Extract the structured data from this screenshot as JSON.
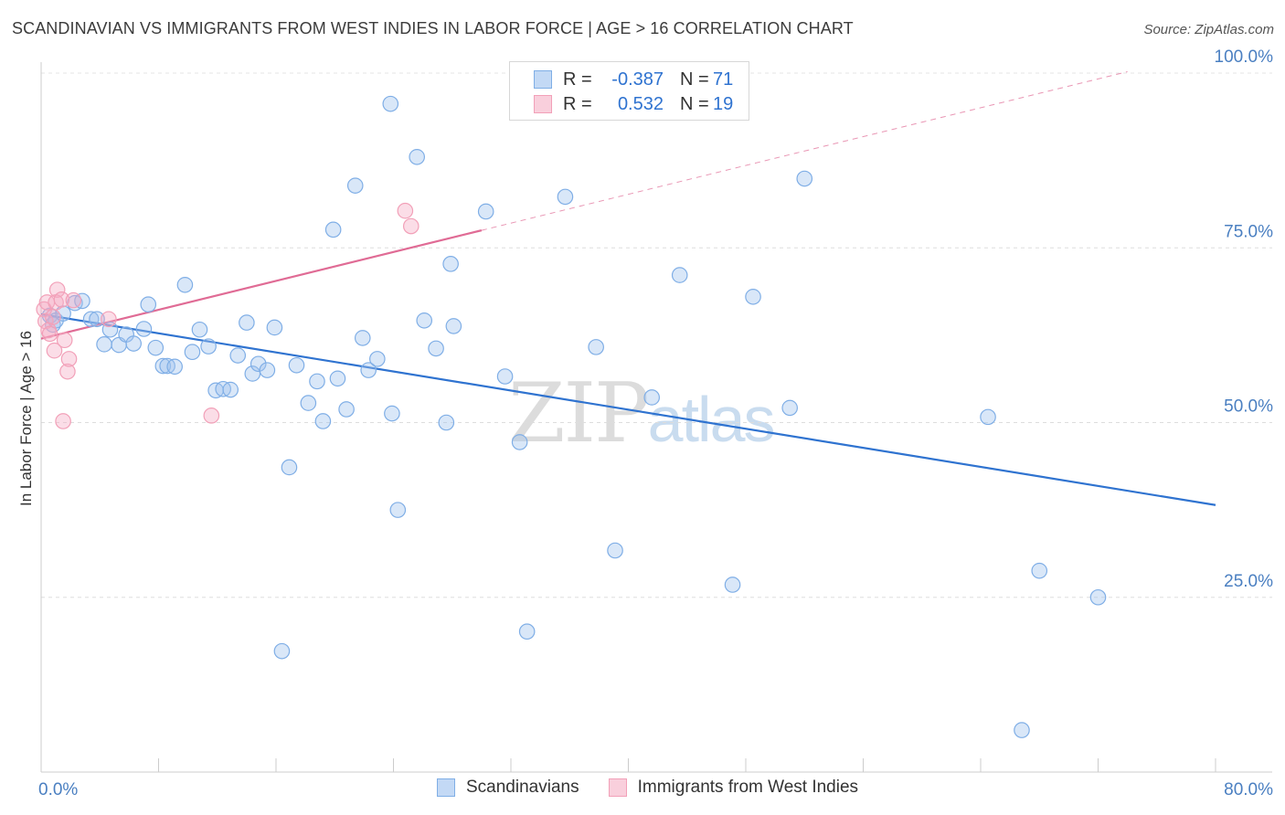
{
  "header": {
    "title": "SCANDINAVIAN VS IMMIGRANTS FROM WEST INDIES IN LABOR FORCE | AGE > 16 CORRELATION CHART",
    "source": "Source: ZipAtlas.com"
  },
  "watermark": {
    "part1": "ZIP",
    "part2": "atlas"
  },
  "legend": {
    "rows": [
      {
        "r_label": "R =",
        "r_value": "-0.387",
        "n_label": "N =",
        "n_value": "71",
        "color": "#7faee6"
      },
      {
        "r_label": "R =",
        "r_value": "0.532",
        "n_label": "N =",
        "n_value": "19",
        "color": "#f2a0b8"
      }
    ]
  },
  "bottom_legend": {
    "items": [
      {
        "label": "Scandinavians",
        "color": "#7faee6"
      },
      {
        "label": "Immigrants from West Indies",
        "color": "#f2a0b8"
      }
    ]
  },
  "chart_data": {
    "type": "scatter",
    "title": "SCANDINAVIAN VS IMMIGRANTS FROM WEST INDIES IN LABOR FORCE | AGE > 16 CORRELATION CHART",
    "xlabel": "",
    "ylabel": "In Labor Force | Age > 16",
    "xlim": [
      0,
      80
    ],
    "ylim": [
      0,
      100
    ],
    "x_tick_labels": [
      "0.0%",
      "80.0%"
    ],
    "y_ticks": [
      25,
      50,
      75,
      100
    ],
    "y_tick_labels": [
      "25.0%",
      "50.0%",
      "75.0%",
      "100.0%"
    ],
    "grid": "horizontal dashed",
    "legend_position": "top-center",
    "series": [
      {
        "name": "Scandinavians",
        "color": "#7faee6",
        "line_color": "#2f73d0",
        "trend": {
          "x": [
            0,
            80
          ],
          "y": [
            65.5,
            38.2
          ]
        },
        "points": [
          [
            0.6,
            65.3
          ],
          [
            0.8,
            64.0
          ],
          [
            1.0,
            64.6
          ],
          [
            1.5,
            65.6
          ],
          [
            2.3,
            67.1
          ],
          [
            2.8,
            67.4
          ],
          [
            3.4,
            64.8
          ],
          [
            3.8,
            64.8
          ],
          [
            4.3,
            61.2
          ],
          [
            4.7,
            63.3
          ],
          [
            5.3,
            61.1
          ],
          [
            5.8,
            62.6
          ],
          [
            6.3,
            61.3
          ],
          [
            7.0,
            63.4
          ],
          [
            7.3,
            66.9
          ],
          [
            7.8,
            60.7
          ],
          [
            8.3,
            58.1
          ],
          [
            8.6,
            58.1
          ],
          [
            9.1,
            58.0
          ],
          [
            9.8,
            69.7
          ],
          [
            10.3,
            60.1
          ],
          [
            10.8,
            63.3
          ],
          [
            11.4,
            60.9
          ],
          [
            11.9,
            54.6
          ],
          [
            12.4,
            54.8
          ],
          [
            12.9,
            54.7
          ],
          [
            13.4,
            59.6
          ],
          [
            14.0,
            64.3
          ],
          [
            14.4,
            57.0
          ],
          [
            14.8,
            58.4
          ],
          [
            15.4,
            57.5
          ],
          [
            15.9,
            63.6
          ],
          [
            16.4,
            17.3
          ],
          [
            16.9,
            43.6
          ],
          [
            17.4,
            58.2
          ],
          [
            18.2,
            52.8
          ],
          [
            18.8,
            55.9
          ],
          [
            19.2,
            50.2
          ],
          [
            19.9,
            77.6
          ],
          [
            20.2,
            56.3
          ],
          [
            20.8,
            51.9
          ],
          [
            21.4,
            83.9
          ],
          [
            21.9,
            62.1
          ],
          [
            22.3,
            57.5
          ],
          [
            22.9,
            59.1
          ],
          [
            23.9,
            51.3
          ],
          [
            23.8,
            95.6
          ],
          [
            24.3,
            37.5
          ],
          [
            25.6,
            88.0
          ],
          [
            26.1,
            64.6
          ],
          [
            26.9,
            60.6
          ],
          [
            27.9,
            72.7
          ],
          [
            27.6,
            50.0
          ],
          [
            28.1,
            63.8
          ],
          [
            30.3,
            80.2
          ],
          [
            31.6,
            56.6
          ],
          [
            32.6,
            47.2
          ],
          [
            33.1,
            20.1
          ],
          [
            35.7,
            82.3
          ],
          [
            37.8,
            60.8
          ],
          [
            39.1,
            31.7
          ],
          [
            41.6,
            53.6
          ],
          [
            43.5,
            71.1
          ],
          [
            47.1,
            26.8
          ],
          [
            48.5,
            68.0
          ],
          [
            51.0,
            52.1
          ],
          [
            52.0,
            84.9
          ],
          [
            64.5,
            50.8
          ],
          [
            66.8,
            6.0
          ],
          [
            68.0,
            28.8
          ],
          [
            72.0,
            25.0
          ]
        ]
      },
      {
        "name": "Immigrants from West Indies",
        "color": "#f2a0b8",
        "line_color": "#e06b95",
        "trend": {
          "x": [
            0,
            30
          ],
          "y": [
            62.0,
            77.5
          ]
        },
        "trend_extension": {
          "x": [
            30,
            74
          ],
          "y": [
            77.5,
            100.2
          ]
        },
        "points": [
          [
            0.2,
            66.2
          ],
          [
            0.3,
            64.5
          ],
          [
            0.5,
            63.2
          ],
          [
            0.6,
            62.7
          ],
          [
            0.4,
            67.2
          ],
          [
            0.8,
            65.1
          ],
          [
            0.9,
            60.3
          ],
          [
            1.1,
            69.0
          ],
          [
            1.0,
            67.2
          ],
          [
            1.4,
            67.6
          ],
          [
            1.6,
            61.8
          ],
          [
            1.5,
            50.2
          ],
          [
            1.8,
            57.3
          ],
          [
            1.9,
            59.1
          ],
          [
            2.2,
            67.5
          ],
          [
            4.6,
            64.8
          ],
          [
            11.6,
            51.0
          ],
          [
            24.8,
            80.3
          ],
          [
            25.2,
            78.1
          ]
        ]
      }
    ]
  }
}
